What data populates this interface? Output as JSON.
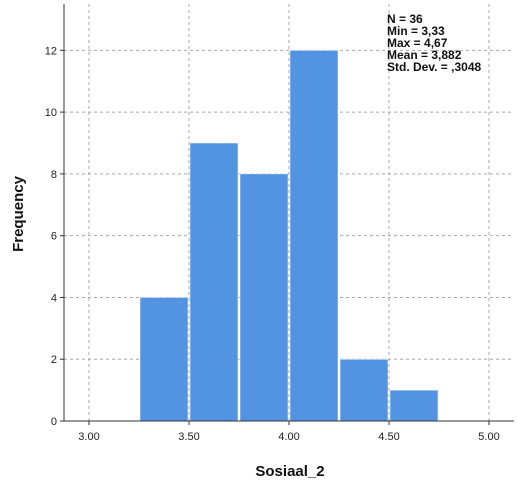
{
  "chart_data": {
    "type": "histogram",
    "xlabel": "Sosiaal_2",
    "ylabel": "Frequency",
    "x_ticks": [
      "3.00",
      "3.50",
      "4.00",
      "4.50",
      "5.00"
    ],
    "y_ticks": [
      "0",
      "2",
      "4",
      "6",
      "8",
      "10",
      "12"
    ],
    "xlim": [
      2.875,
      5.125
    ],
    "ylim": [
      0,
      13.5
    ],
    "grid": true,
    "bins": [
      {
        "start": 3.25,
        "end": 3.5,
        "count": 4
      },
      {
        "start": 3.5,
        "end": 3.75,
        "count": 9
      },
      {
        "start": 3.75,
        "end": 4.0,
        "count": 8
      },
      {
        "start": 4.0,
        "end": 4.25,
        "count": 12
      },
      {
        "start": 4.25,
        "end": 4.5,
        "count": 2
      },
      {
        "start": 4.5,
        "end": 4.75,
        "count": 1
      }
    ],
    "bar_color": "#5294e2",
    "stats": [
      "N = 36",
      "Min = 3,33",
      "Max = 4,67",
      "Mean = 3,882",
      "Std. Dev. = ,3048"
    ],
    "stats_position": "top-right"
  }
}
